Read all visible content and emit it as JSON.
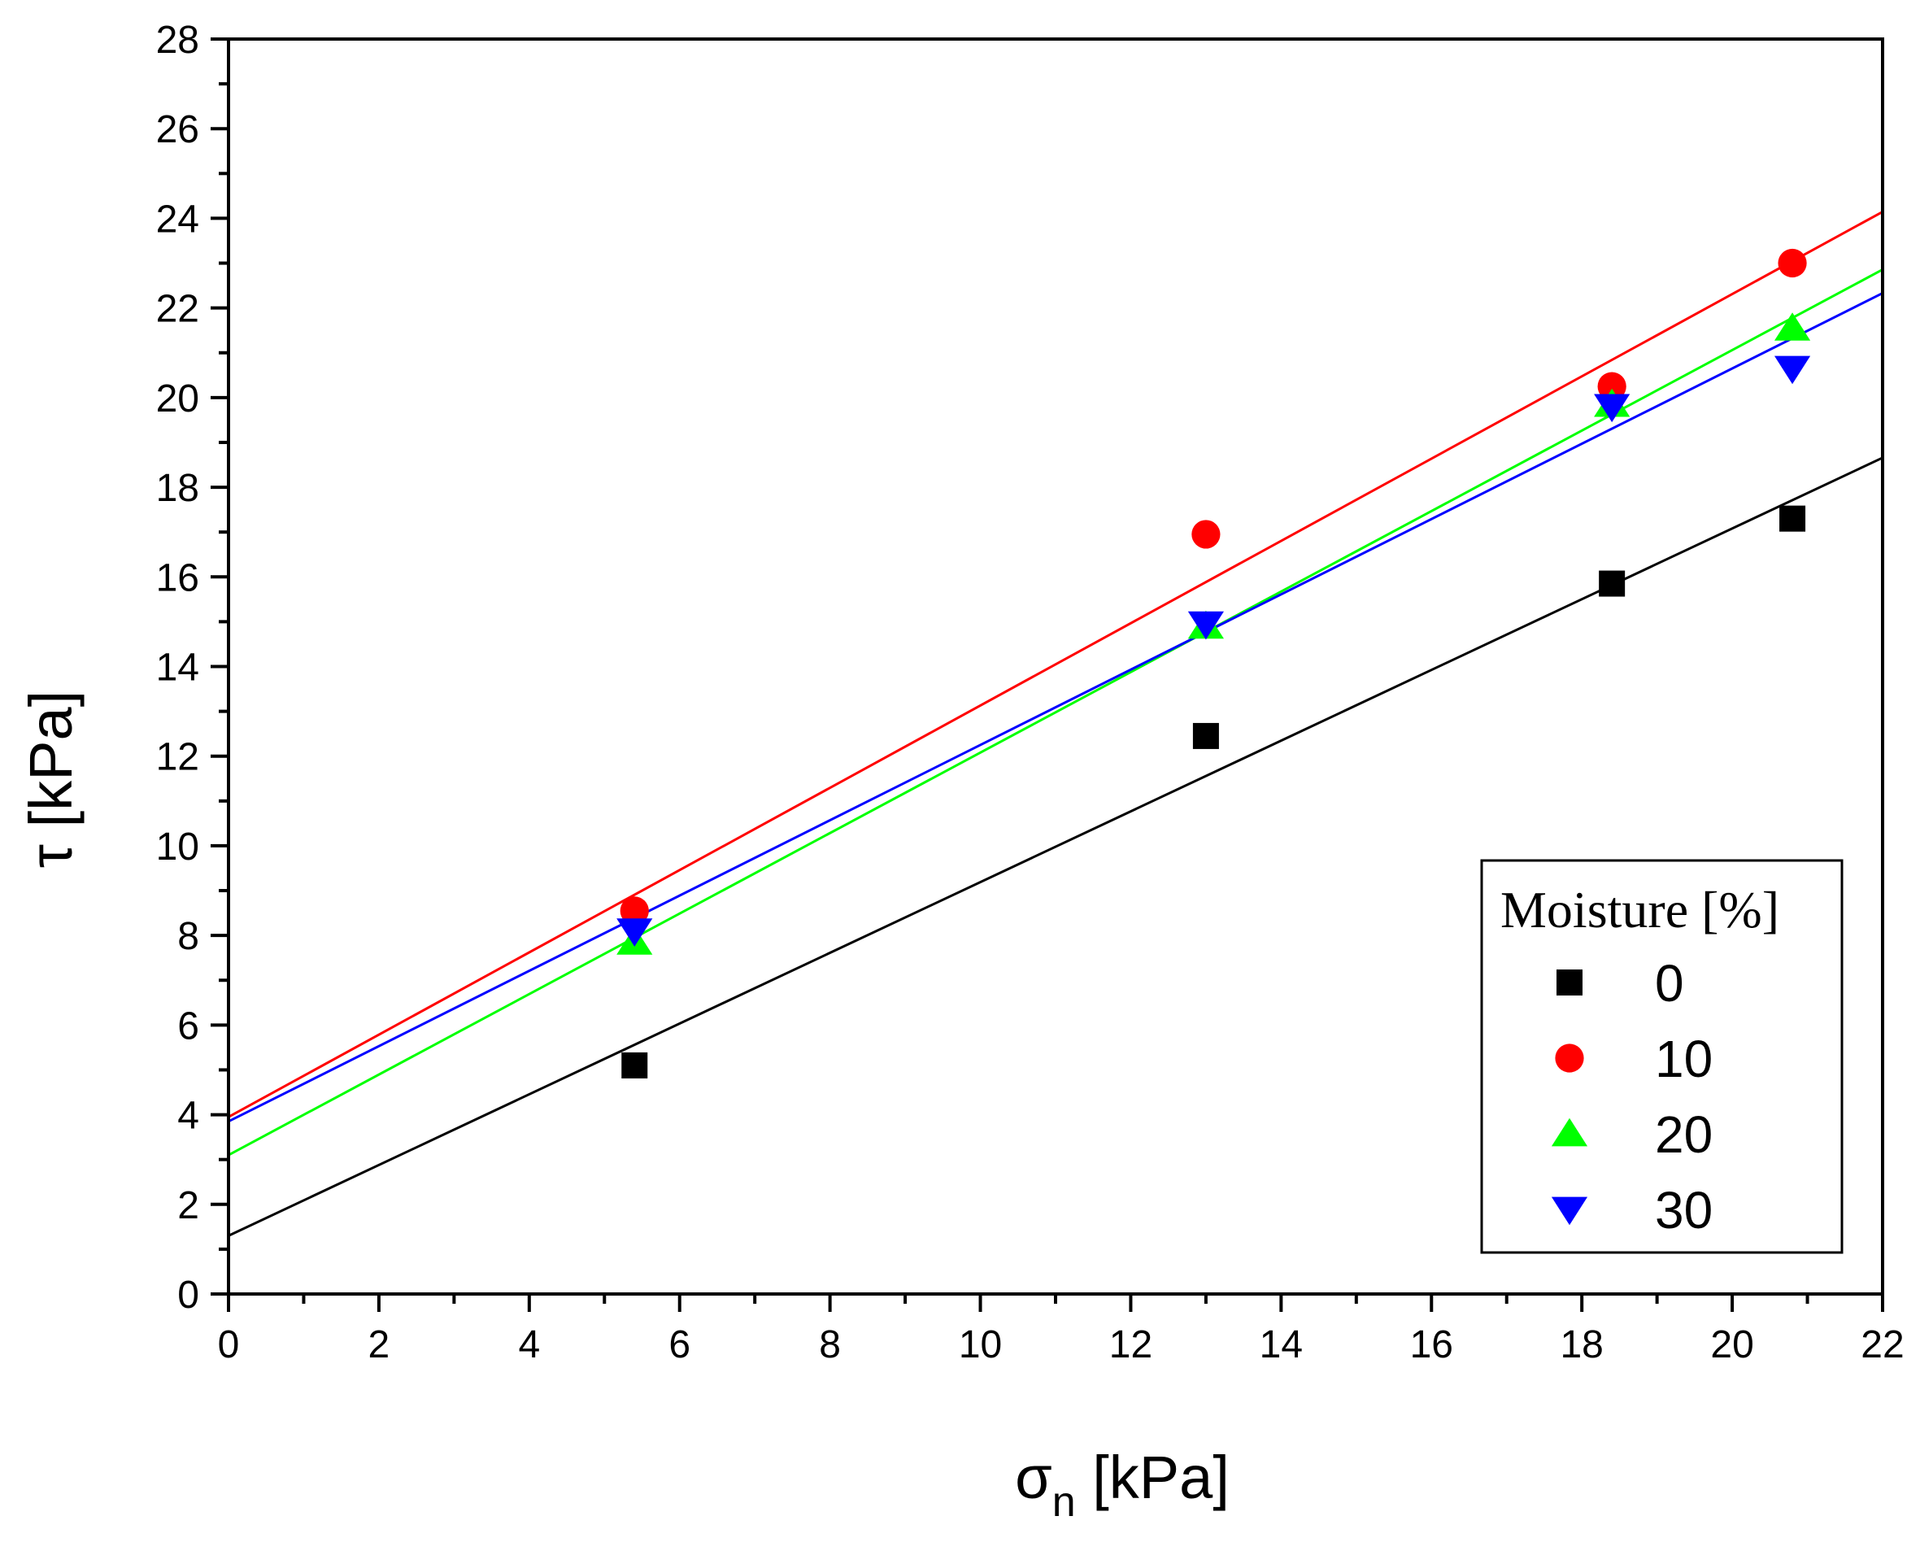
{
  "chart_data": {
    "type": "scatter",
    "title": "",
    "xlabel_main": "σ",
    "xlabel_sub": "n",
    "xlabel_unit": " [kPa]",
    "ylabel": "τ [kPa]",
    "xlim": [
      0,
      22
    ],
    "ylim": [
      0,
      28
    ],
    "x_major_step": 2,
    "y_major_step": 2,
    "x_ticks": [
      "0",
      "2",
      "4",
      "6",
      "8",
      "10",
      "12",
      "14",
      "16",
      "18",
      "20",
      "22"
    ],
    "y_ticks": [
      "0",
      "2",
      "4",
      "6",
      "8",
      "10",
      "12",
      "14",
      "16",
      "18",
      "20",
      "22",
      "24",
      "26",
      "28"
    ],
    "grid": false,
    "legend": {
      "title": "Moisture [%]",
      "position": "bottom-right"
    },
    "series": [
      {
        "name": "0",
        "marker": "square",
        "color": "#000000",
        "x": [
          5.4,
          13.0,
          18.4,
          20.8
        ],
        "y": [
          5.1,
          12.45,
          15.85,
          17.3
        ],
        "fit": {
          "intercept": 1.3,
          "slope": 0.789
        }
      },
      {
        "name": "10",
        "marker": "circle",
        "color": "#ff0000",
        "x": [
          5.4,
          13.0,
          18.4,
          20.8
        ],
        "y": [
          8.55,
          16.95,
          20.25,
          23.0
        ],
        "fit": {
          "intercept": 3.95,
          "slope": 0.918
        }
      },
      {
        "name": "20",
        "marker": "triangle-up",
        "color": "#00ff00",
        "x": [
          5.4,
          13.0,
          18.4,
          20.8
        ],
        "y": [
          7.85,
          14.9,
          19.85,
          21.55
        ],
        "fit": {
          "intercept": 3.1,
          "slope": 0.898
        }
      },
      {
        "name": "30",
        "marker": "triangle-down",
        "color": "#0000ff",
        "x": [
          5.4,
          13.0,
          18.4,
          20.8
        ],
        "y": [
          8.1,
          14.95,
          19.8,
          20.65
        ],
        "fit": {
          "intercept": 3.85,
          "slope": 0.84
        }
      }
    ]
  }
}
